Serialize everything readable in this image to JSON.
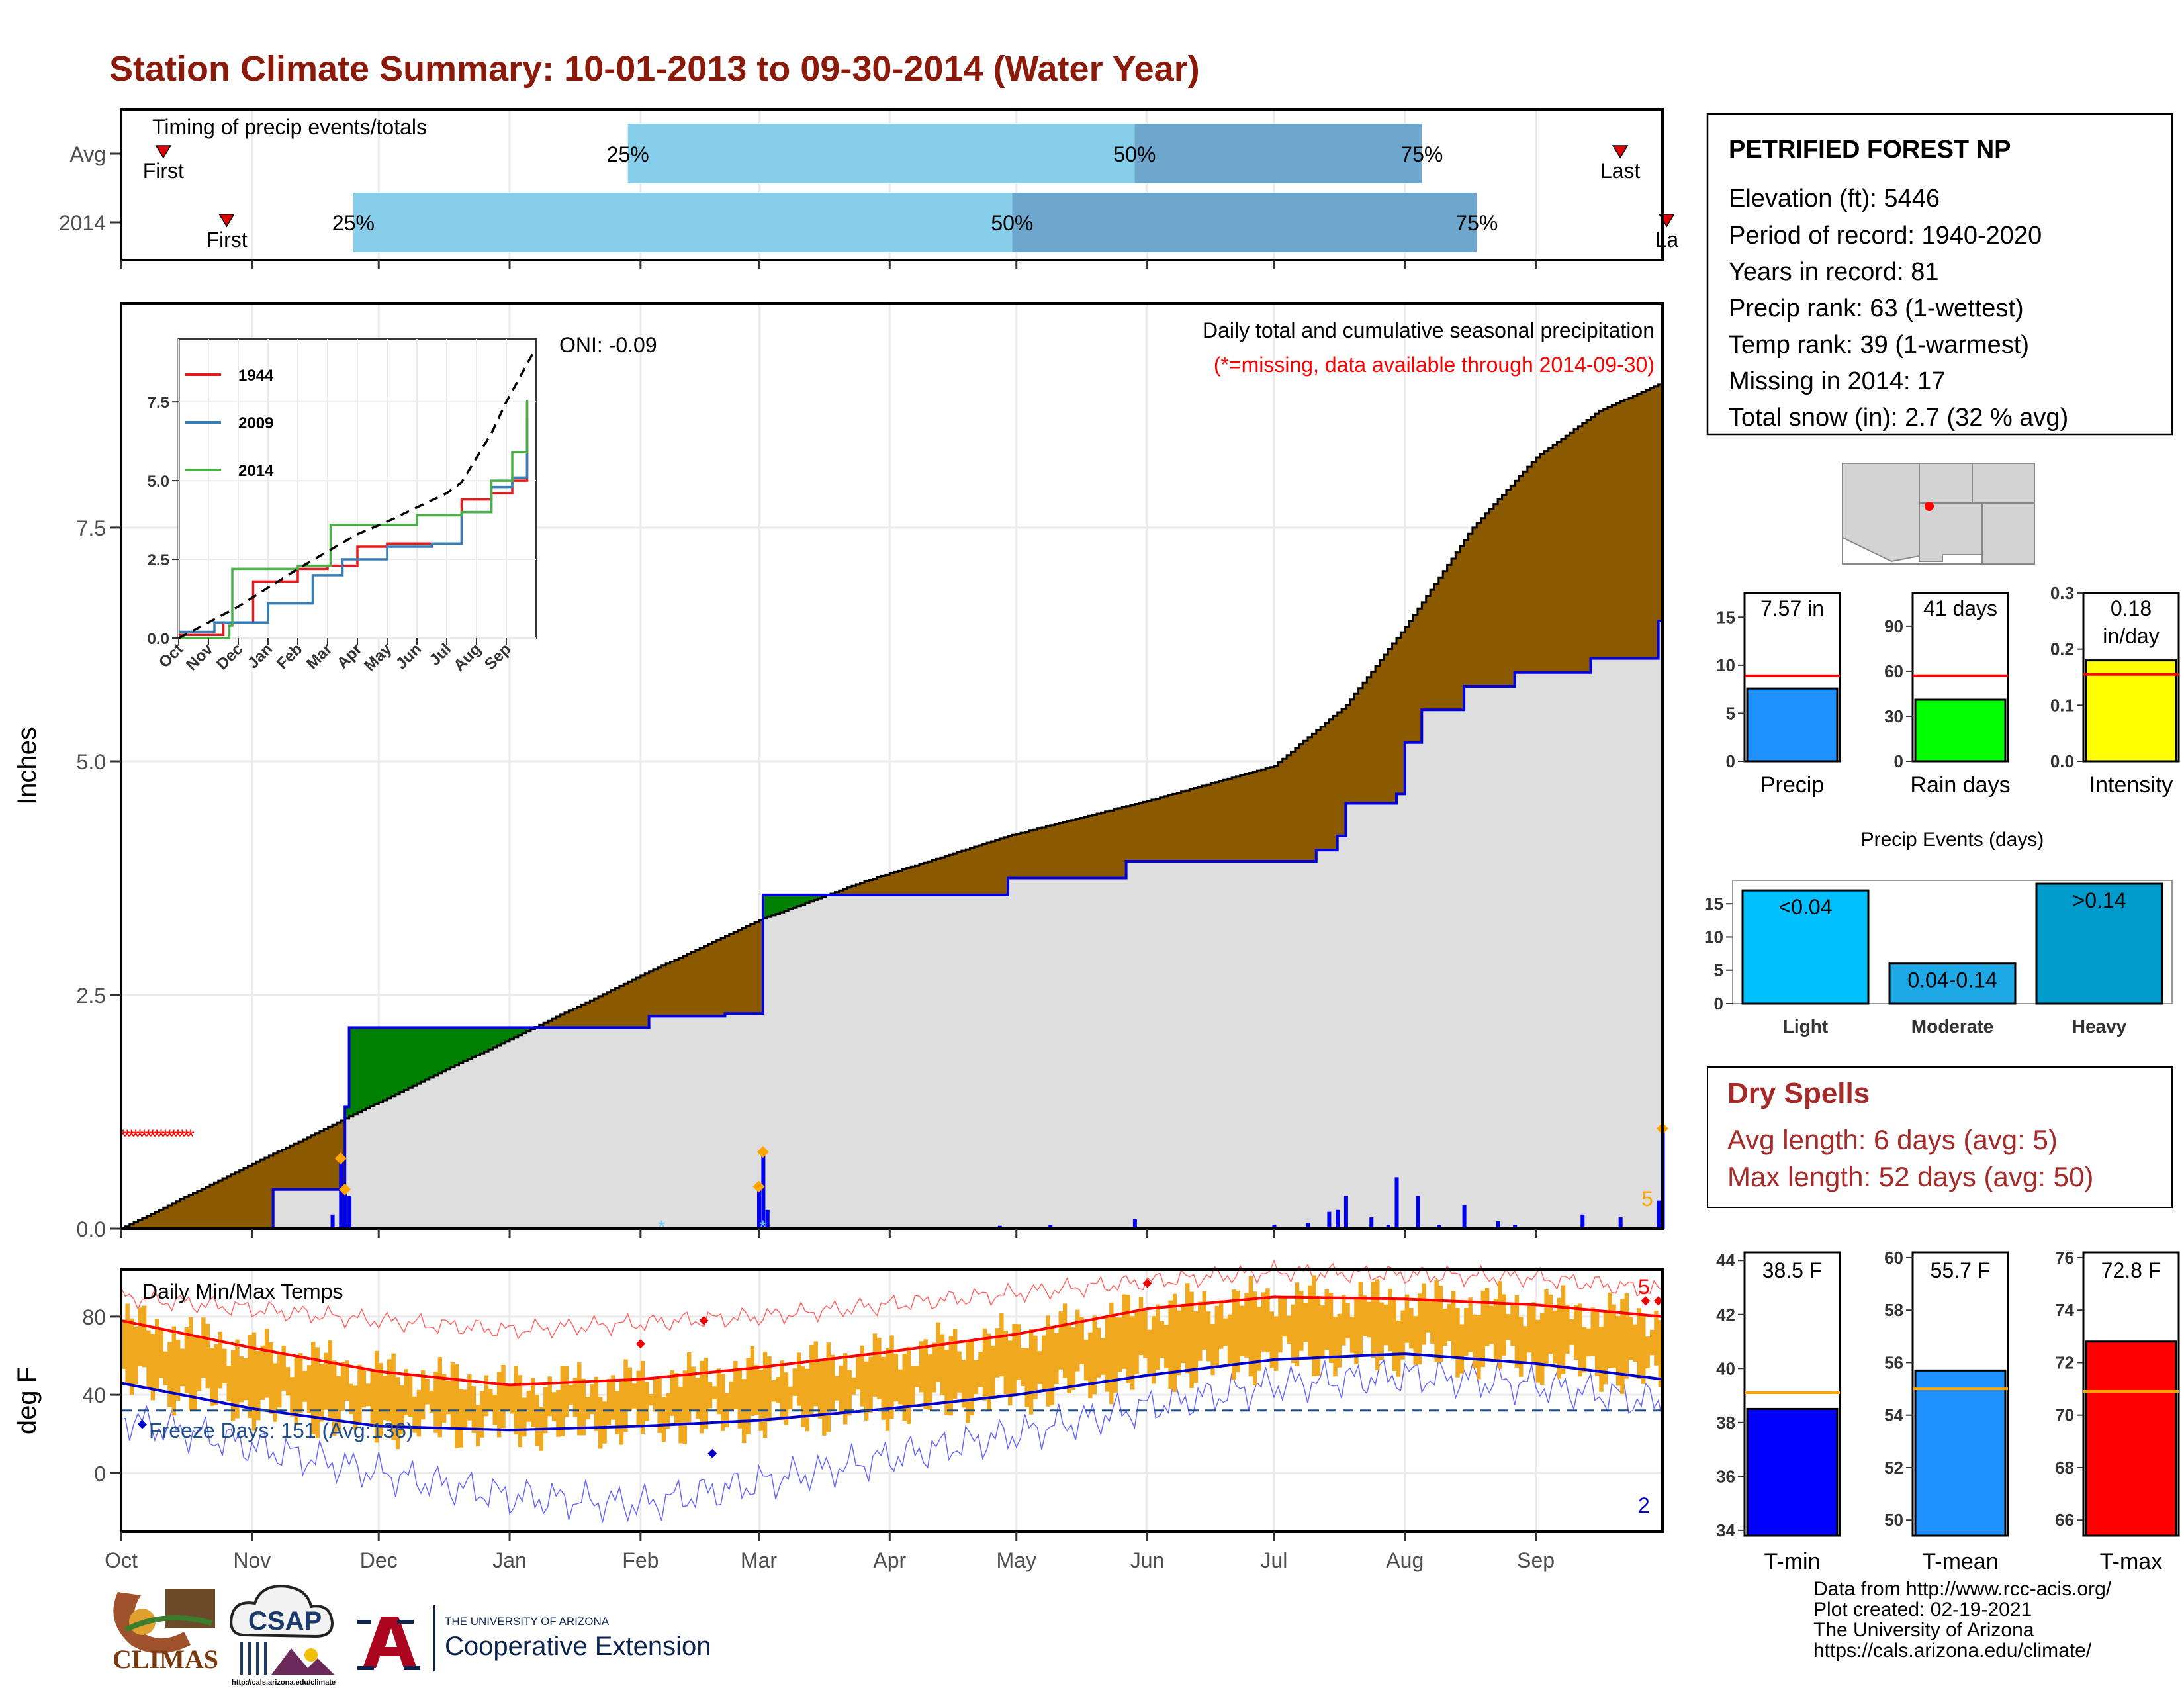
{
  "title": "Station Climate Summary: 10-01-2013 to 09-30-2014 (Water Year)",
  "colors": {
    "title": "#8b1a0a",
    "precip_surplus": "#8b5a00",
    "precip_deficit": "#008000",
    "cum_fill": "#dedede",
    "cum_line": "#0000dd",
    "quartile_light": "#87ceeb",
    "quartile_dark": "#6ea7cd",
    "temp_bars": "#f0a91e",
    "tmax_line": "#ff0000",
    "tmin_line": "#0000cc",
    "dry_spells_text": "#a52a2a"
  },
  "timing_panel": {
    "title": "Timing of precip events/totals",
    "rows": [
      {
        "label": "Avg",
        "first_label": "First",
        "last_label": "Last",
        "first_day": 10,
        "last_day": 355,
        "q25_day": 120,
        "q50_day": 240,
        "q75_day": 308,
        "q_labels": [
          "25%",
          "50%",
          "75%"
        ]
      },
      {
        "label": "2014",
        "first_label": "First",
        "last_label": "La",
        "first_day": 25,
        "last_day": 366,
        "q25_day": 55,
        "q50_day": 211,
        "q75_day": 321,
        "q_labels": [
          "25%",
          "50%",
          "75%"
        ]
      }
    ]
  },
  "precip_panel": {
    "title": "Daily total and cumulative seasonal precipitation",
    "missing_note": "(*=missing, data available through 2014-09-30)",
    "oni": "ONI: -0.09",
    "ylabel": "Inches",
    "yticks": [
      "0.0",
      "2.5",
      "5.0",
      "7.5"
    ],
    "corner_count": "5",
    "missing_marker": "*"
  },
  "inset": {
    "yticks": [
      "0.0",
      "2.5",
      "5.0",
      "7.5"
    ],
    "xticks": [
      "Oct",
      "Nov",
      "Dec",
      "Jan",
      "Feb",
      "Mar",
      "Apr",
      "May",
      "Jun",
      "Jul",
      "Aug",
      "Sep"
    ],
    "legend": [
      {
        "name": "1944",
        "color": "#e41a1c"
      },
      {
        "name": "2009",
        "color": "#377eb8"
      },
      {
        "name": "2014",
        "color": "#4daf4a"
      }
    ]
  },
  "temp_panel": {
    "title": "Daily Min/Max Temps",
    "ylabel": "deg F",
    "yticks": [
      "0",
      "40",
      "80"
    ],
    "freeze_days": "Freeze Days: 151 (Avg:136)",
    "max_count": "5",
    "min_count": "2"
  },
  "months": [
    "Oct",
    "Nov",
    "Dec",
    "Jan",
    "Feb",
    "Mar",
    "Apr",
    "May",
    "Jun",
    "Jul",
    "Aug",
    "Sep"
  ],
  "station": {
    "name": "PETRIFIED FOREST NP",
    "lines": [
      "Elevation (ft): 5446",
      "Period of record: 1940-2020",
      "Years in record: 81",
      "Precip rank: 63 (1-wettest)",
      "Temp rank: 39 (1-warmest)",
      "Missing in 2014: 17",
      "Total snow (in): 2.7 (32 % avg)"
    ]
  },
  "summary_bars": [
    {
      "label": "Precip",
      "value": 7.57,
      "avg": 8.9,
      "max": 17.5,
      "ticks": [
        0,
        5,
        10,
        15
      ],
      "text_lines": [
        "7.57 in"
      ],
      "color": "#1e90ff"
    },
    {
      "label": "Rain days",
      "value": 41,
      "avg": 57,
      "max": 112,
      "ticks": [
        0,
        30,
        60,
        90
      ],
      "text_lines": [
        "41 days"
      ],
      "color": "#00ff00"
    },
    {
      "label": "Intensity",
      "value": 0.18,
      "avg": 0.155,
      "max": 0.3,
      "ticks": [
        0.0,
        0.1,
        0.2,
        0.3
      ],
      "tick_labels": [
        "0.0",
        "0.1",
        "0.2",
        "0.3"
      ],
      "text_lines": [
        "0.18",
        "in/day"
      ],
      "color": "#ffff00"
    }
  ],
  "precip_events": {
    "title": "Precip Events (days)",
    "ymax": 18.5,
    "yticks": [
      0,
      5,
      10,
      15
    ],
    "bars": [
      {
        "category": "Light",
        "value": 17,
        "text": "<0.04",
        "color": "#00bfff"
      },
      {
        "category": "Moderate",
        "value": 6,
        "text": "0.04-0.14",
        "color": "#1ea8e6"
      },
      {
        "category": "Heavy",
        "value": 18,
        "text": ">0.14",
        "color": "#009acd"
      }
    ]
  },
  "dry_spells": {
    "title": "Dry Spells",
    "lines": [
      "Avg length: 6 days (avg: 5)",
      "Max length: 52 days (avg: 50)"
    ]
  },
  "temp_bars": [
    {
      "label": "T-min",
      "value": 38.5,
      "avg": 39.1,
      "min": 33.8,
      "max": 44.3,
      "ticks": [
        34,
        36,
        38,
        40,
        42,
        44
      ],
      "text": "38.5 F",
      "color": "#0000ff"
    },
    {
      "label": "T-mean",
      "value": 55.7,
      "avg": 55.0,
      "min": 49.4,
      "max": 60.2,
      "ticks": [
        50,
        52,
        54,
        56,
        58,
        60
      ],
      "text": "55.7 F",
      "color": "#1e90ff"
    },
    {
      "label": "T-max",
      "value": 72.8,
      "avg": 70.9,
      "min": 65.4,
      "max": 76.2,
      "ticks": [
        66,
        68,
        70,
        72,
        74,
        76
      ],
      "text": "72.8 F",
      "color": "#ff0000"
    }
  ],
  "credits": [
    "Data from http://www.rcc-acis.org/",
    "Plot created: 02-19-2021",
    "The University of Arizona",
    "https://cals.arizona.edu/climate/"
  ],
  "logos": {
    "climas": "CLIMAS",
    "csap": "CSAP",
    "csap_url": "http://cals.arizona.edu/climate",
    "ua_small": "THE UNIVERSITY OF ARIZONA",
    "ua_big": "Cooperative Extension"
  },
  "chart_data": {
    "type": "area",
    "title": "Daily total and cumulative seasonal precipitation",
    "ylabel": "Inches",
    "ylim": [
      0,
      9.9
    ],
    "x_day_range": [
      0,
      365
    ],
    "average_cumulative": [
      {
        "day": 0,
        "value": 0.0
      },
      {
        "day": 20,
        "value": 0.45
      },
      {
        "day": 45,
        "value": 1.0
      },
      {
        "day": 70,
        "value": 1.55
      },
      {
        "day": 100,
        "value": 2.2
      },
      {
        "day": 125,
        "value": 2.75
      },
      {
        "day": 151,
        "value": 3.3
      },
      {
        "day": 175,
        "value": 3.7
      },
      {
        "day": 210,
        "value": 4.2
      },
      {
        "day": 245,
        "value": 4.6
      },
      {
        "day": 273,
        "value": 4.95
      },
      {
        "day": 290,
        "value": 5.6
      },
      {
        "day": 305,
        "value": 6.5
      },
      {
        "day": 320,
        "value": 7.5
      },
      {
        "day": 335,
        "value": 8.25
      },
      {
        "day": 350,
        "value": 8.75
      },
      {
        "day": 365,
        "value": 9.05
      }
    ],
    "observed_cumulative": [
      {
        "day": 0,
        "value": 0.0
      },
      {
        "day": 35,
        "value": 0.0
      },
      {
        "day": 36,
        "value": 0.42
      },
      {
        "day": 50,
        "value": 0.42
      },
      {
        "day": 53,
        "value": 1.3
      },
      {
        "day": 54,
        "value": 2.15
      },
      {
        "day": 125,
        "value": 2.27
      },
      {
        "day": 143,
        "value": 2.3
      },
      {
        "day": 151,
        "value": 2.3
      },
      {
        "day": 152,
        "value": 3.57
      },
      {
        "day": 180,
        "value": 3.57
      },
      {
        "day": 210,
        "value": 3.75
      },
      {
        "day": 238,
        "value": 3.93
      },
      {
        "day": 278,
        "value": 3.93
      },
      {
        "day": 283,
        "value": 4.05
      },
      {
        "day": 288,
        "value": 4.2
      },
      {
        "day": 290,
        "value": 4.55
      },
      {
        "day": 302,
        "value": 4.65
      },
      {
        "day": 304,
        "value": 5.2
      },
      {
        "day": 308,
        "value": 5.55
      },
      {
        "day": 318,
        "value": 5.8
      },
      {
        "day": 330,
        "value": 5.95
      },
      {
        "day": 348,
        "value": 6.1
      },
      {
        "day": 364,
        "value": 6.5
      },
      {
        "day": 365,
        "value": 7.57
      }
    ],
    "daily_precip": [
      {
        "day": 50,
        "value": 0.15
      },
      {
        "day": 52,
        "value": 0.75
      },
      {
        "day": 53,
        "value": 0.42
      },
      {
        "day": 54,
        "value": 0.35
      },
      {
        "day": 151,
        "value": 0.45
      },
      {
        "day": 152,
        "value": 0.82
      },
      {
        "day": 153,
        "value": 0.2
      },
      {
        "day": 208,
        "value": 0.03
      },
      {
        "day": 220,
        "value": 0.04
      },
      {
        "day": 240,
        "value": 0.1
      },
      {
        "day": 273,
        "value": 0.04
      },
      {
        "day": 281,
        "value": 0.06
      },
      {
        "day": 286,
        "value": 0.18
      },
      {
        "day": 288,
        "value": 0.2
      },
      {
        "day": 290,
        "value": 0.35
      },
      {
        "day": 296,
        "value": 0.12
      },
      {
        "day": 300,
        "value": 0.04
      },
      {
        "day": 302,
        "value": 0.55
      },
      {
        "day": 307,
        "value": 0.35
      },
      {
        "day": 312,
        "value": 0.04
      },
      {
        "day": 318,
        "value": 0.25
      },
      {
        "day": 326,
        "value": 0.08
      },
      {
        "day": 330,
        "value": 0.04
      },
      {
        "day": 346,
        "value": 0.15
      },
      {
        "day": 355,
        "value": 0.12
      },
      {
        "day": 364,
        "value": 0.3
      },
      {
        "day": 365,
        "value": 1.07
      }
    ],
    "missing_days": [
      0,
      1,
      2,
      3,
      4,
      5,
      6,
      7,
      8,
      9,
      10,
      11,
      12,
      13,
      14,
      15,
      16
    ],
    "inset_series": [
      {
        "name": "1944",
        "points": [
          {
            "m": 0,
            "v": 0.1
          },
          {
            "m": 1.5,
            "v": 0.5
          },
          {
            "m": 2.5,
            "v": 1.8
          },
          {
            "m": 4,
            "v": 2.2
          },
          {
            "m": 5,
            "v": 2.3
          },
          {
            "m": 6,
            "v": 2.9
          },
          {
            "m": 7,
            "v": 3.0
          },
          {
            "m": 8,
            "v": 3.0
          },
          {
            "m": 9.5,
            "v": 4.4
          },
          {
            "m": 10.5,
            "v": 4.6
          },
          {
            "m": 11.2,
            "v": 5.0
          },
          {
            "m": 11.7,
            "v": 7.5
          }
        ]
      },
      {
        "name": "2009",
        "points": [
          {
            "m": 0,
            "v": 0.2
          },
          {
            "m": 1.2,
            "v": 0.5
          },
          {
            "m": 3,
            "v": 1.1
          },
          {
            "m": 4.5,
            "v": 2.0
          },
          {
            "m": 5.5,
            "v": 2.5
          },
          {
            "m": 7,
            "v": 2.9
          },
          {
            "m": 8.5,
            "v": 3.0
          },
          {
            "m": 9.5,
            "v": 4.0
          },
          {
            "m": 10.5,
            "v": 4.8
          },
          {
            "m": 11.2,
            "v": 5.1
          },
          {
            "m": 11.7,
            "v": 7.0
          }
        ]
      },
      {
        "name": "2014",
        "points": [
          {
            "m": 0,
            "v": 0.0
          },
          {
            "m": 1.7,
            "v": 0.4
          },
          {
            "m": 1.8,
            "v": 2.2
          },
          {
            "m": 4,
            "v": 2.3
          },
          {
            "m": 5,
            "v": 2.3
          },
          {
            "m": 5.1,
            "v": 3.6
          },
          {
            "m": 7,
            "v": 3.6
          },
          {
            "m": 8,
            "v": 3.9
          },
          {
            "m": 9.5,
            "v": 4.0
          },
          {
            "m": 10.5,
            "v": 5.0
          },
          {
            "m": 11.2,
            "v": 5.9
          },
          {
            "m": 11.7,
            "v": 7.57
          }
        ]
      },
      {
        "name": "average",
        "points": [
          {
            "m": 0,
            "v": 0.0
          },
          {
            "m": 2,
            "v": 1.0
          },
          {
            "m": 4,
            "v": 2.2
          },
          {
            "m": 6,
            "v": 3.3
          },
          {
            "m": 7,
            "v": 3.7
          },
          {
            "m": 9,
            "v": 4.6
          },
          {
            "m": 9.5,
            "v": 4.95
          },
          {
            "m": 10.5,
            "v": 6.5
          },
          {
            "m": 11,
            "v": 7.5
          },
          {
            "m": 11.9,
            "v": 9.05
          }
        ]
      }
    ],
    "temperature": {
      "ylim": [
        -30,
        104
      ],
      "tmax_smooth": [
        {
          "day": 0,
          "v": 78
        },
        {
          "day": 31,
          "v": 64
        },
        {
          "day": 61,
          "v": 52
        },
        {
          "day": 92,
          "v": 45
        },
        {
          "day": 123,
          "v": 48
        },
        {
          "day": 151,
          "v": 54
        },
        {
          "day": 182,
          "v": 62
        },
        {
          "day": 212,
          "v": 71
        },
        {
          "day": 243,
          "v": 84
        },
        {
          "day": 273,
          "v": 90
        },
        {
          "day": 304,
          "v": 89
        },
        {
          "day": 335,
          "v": 86
        },
        {
          "day": 365,
          "v": 80
        }
      ],
      "tmin_smooth": [
        {
          "day": 0,
          "v": 46
        },
        {
          "day": 31,
          "v": 33
        },
        {
          "day": 61,
          "v": 24
        },
        {
          "day": 92,
          "v": 22
        },
        {
          "day": 123,
          "v": 24
        },
        {
          "day": 151,
          "v": 27
        },
        {
          "day": 182,
          "v": 33
        },
        {
          "day": 212,
          "v": 40
        },
        {
          "day": 243,
          "v": 50
        },
        {
          "day": 273,
          "v": 58
        },
        {
          "day": 304,
          "v": 61
        },
        {
          "day": 335,
          "v": 56
        },
        {
          "day": 365,
          "v": 48
        }
      ],
      "record_high": [
        {
          "day": 0,
          "v": 90
        },
        {
          "day": 61,
          "v": 78
        },
        {
          "day": 92,
          "v": 73
        },
        {
          "day": 151,
          "v": 80
        },
        {
          "day": 212,
          "v": 92
        },
        {
          "day": 243,
          "v": 98
        },
        {
          "day": 273,
          "v": 103
        },
        {
          "day": 335,
          "v": 100
        },
        {
          "day": 365,
          "v": 93
        }
      ],
      "record_low": [
        {
          "day": 0,
          "v": 28
        },
        {
          "day": 61,
          "v": 0
        },
        {
          "day": 92,
          "v": -12
        },
        {
          "day": 123,
          "v": -16
        },
        {
          "day": 151,
          "v": -5
        },
        {
          "day": 182,
          "v": 8
        },
        {
          "day": 212,
          "v": 20
        },
        {
          "day": 243,
          "v": 34
        },
        {
          "day": 273,
          "v": 45
        },
        {
          "day": 304,
          "v": 50
        },
        {
          "day": 335,
          "v": 45
        },
        {
          "day": 365,
          "v": 36
        }
      ],
      "freeze_line": 32,
      "record_high_marks": [
        {
          "day": 123,
          "v": 66
        },
        {
          "day": 138,
          "v": 78
        },
        {
          "day": 243,
          "v": 97
        },
        {
          "day": 361,
          "v": 88
        },
        {
          "day": 364,
          "v": 88
        }
      ],
      "record_low_marks": [
        {
          "day": 140,
          "v": 10
        },
        {
          "day": 5,
          "v": 25
        }
      ]
    }
  }
}
